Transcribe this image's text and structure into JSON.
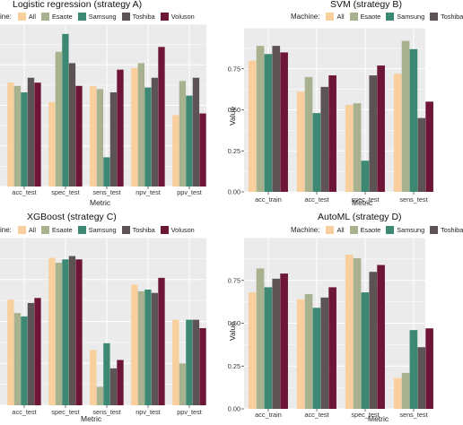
{
  "colors": {
    "All": "#f9cf9e",
    "Esaote": "#a9b28e",
    "Samsung": "#3d8873",
    "Toshiba": "#5d5355",
    "Voluson": "#6e1638",
    "panel_bg": "#ebebeb",
    "grid": "#ffffff"
  },
  "machines": [
    "All",
    "Esaote",
    "Samsung",
    "Toshiba",
    "Voluson"
  ],
  "legend_title": "Machine:",
  "legend_title_cut": "ine:",
  "chart_data": [
    {
      "type": "bar",
      "panel": "top-left",
      "title": "Logistic regression (strategy A)",
      "xlabel": "Metric",
      "ylabel": "",
      "categories": [
        "acc_test",
        "spec_test",
        "sens_test",
        "npv_test",
        "ppv_test"
      ],
      "category_labels": [
        "acc_test",
        "spec_test",
        "sens_test",
        "npv_test",
        "ppv_test"
      ],
      "ylim": [
        0,
        1
      ],
      "grid": true,
      "legend": "top",
      "series": [
        {
          "name": "All",
          "values": [
            0.64,
            0.52,
            0.62,
            0.73,
            0.44
          ]
        },
        {
          "name": "Esaote",
          "values": [
            0.62,
            0.83,
            0.6,
            0.76,
            0.65
          ]
        },
        {
          "name": "Samsung",
          "values": [
            0.58,
            0.94,
            0.18,
            0.61,
            0.56
          ]
        },
        {
          "name": "Toshiba",
          "values": [
            0.67,
            0.76,
            0.58,
            0.67,
            0.67
          ]
        },
        {
          "name": "Voluson",
          "values": [
            0.64,
            0.62,
            0.72,
            0.86,
            0.45
          ]
        }
      ]
    },
    {
      "type": "bar",
      "panel": "top-right",
      "title": "SVM (strategy B)",
      "xlabel": "Metric",
      "ylabel": "Value",
      "categories": [
        "acc_train",
        "acc_test",
        "spec_test",
        "sens_test"
      ],
      "category_labels": [
        "acc_train",
        "acc_test",
        "spec_test",
        "sens_test"
      ],
      "ylim": [
        0,
        1
      ],
      "yticks": [
        "0.00",
        "0.25",
        "0.50",
        "0.75"
      ],
      "grid": true,
      "legend": "top",
      "series": [
        {
          "name": "All",
          "values": [
            0.8,
            0.61,
            0.53,
            0.72
          ]
        },
        {
          "name": "Esaote",
          "values": [
            0.89,
            0.7,
            0.54,
            0.92
          ]
        },
        {
          "name": "Samsung",
          "values": [
            0.84,
            0.48,
            0.19,
            0.87
          ]
        },
        {
          "name": "Toshiba",
          "values": [
            0.89,
            0.64,
            0.71,
            0.45
          ]
        },
        {
          "name": "Voluson",
          "values": [
            0.85,
            0.71,
            0.77,
            0.55
          ]
        }
      ]
    },
    {
      "type": "bar",
      "panel": "bottom-left",
      "title": "XGBoost (strategy C)",
      "xlabel": "Metric",
      "ylabel": "",
      "categories": [
        "acc_test",
        "spec_test",
        "sens_test",
        "npv_test",
        "ppv_test"
      ],
      "category_labels": [
        "acc_test",
        "spec_test",
        "sens_test",
        "npv_test",
        "ppv_test"
      ],
      "ylim": [
        0,
        1
      ],
      "grid": true,
      "legend": "top",
      "series": [
        {
          "name": "All",
          "values": [
            0.63,
            0.88,
            0.33,
            0.72,
            0.51
          ]
        },
        {
          "name": "Esaote",
          "values": [
            0.55,
            0.85,
            0.11,
            0.68,
            0.25
          ]
        },
        {
          "name": "Samsung",
          "values": [
            0.53,
            0.87,
            0.37,
            0.69,
            0.51
          ]
        },
        {
          "name": "Toshiba",
          "values": [
            0.61,
            0.89,
            0.22,
            0.67,
            0.51
          ]
        },
        {
          "name": "Voluson",
          "values": [
            0.64,
            0.87,
            0.27,
            0.76,
            0.46
          ]
        }
      ]
    },
    {
      "type": "bar",
      "panel": "bottom-right",
      "title": "AutoML (strategy D)",
      "xlabel": "Metric",
      "ylabel": "Value",
      "categories": [
        "acc_train",
        "acc_test",
        "spec_test",
        "sens_test"
      ],
      "category_labels": [
        "acc_train",
        "acc_test",
        "spec_test",
        "sens_test"
      ],
      "ylim": [
        0,
        1
      ],
      "yticks": [
        "0.00",
        "0.25",
        "0.50",
        "0.75"
      ],
      "grid": true,
      "legend": "top",
      "series": [
        {
          "name": "All",
          "values": [
            0.68,
            0.64,
            0.9,
            0.18
          ]
        },
        {
          "name": "Esaote",
          "values": [
            0.82,
            0.67,
            0.88,
            0.21
          ]
        },
        {
          "name": "Samsung",
          "values": [
            0.71,
            0.59,
            0.68,
            0.46
          ]
        },
        {
          "name": "Toshiba",
          "values": [
            0.76,
            0.65,
            0.8,
            0.36
          ]
        },
        {
          "name": "Voluson",
          "values": [
            0.79,
            0.71,
            0.84,
            0.47
          ]
        }
      ]
    }
  ]
}
